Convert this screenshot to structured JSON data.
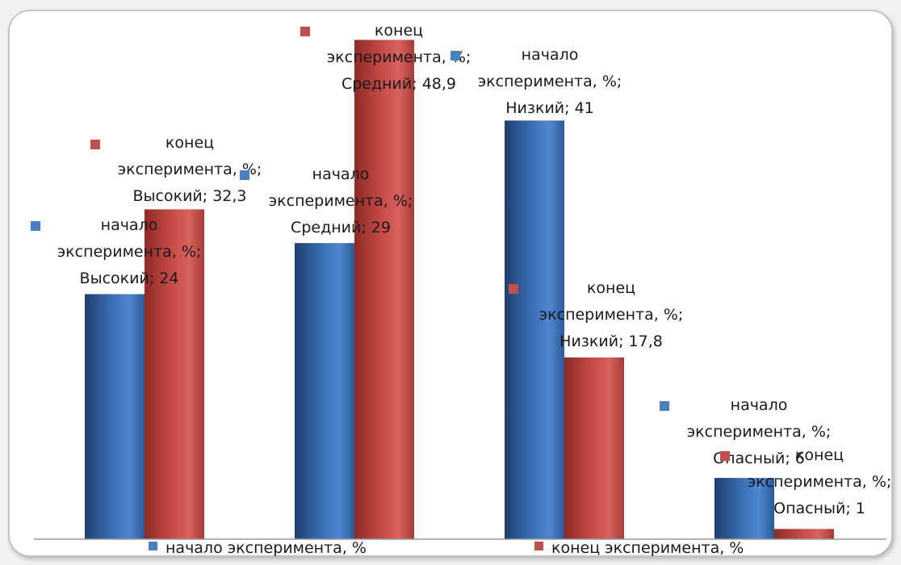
{
  "chart_data": {
    "type": "bar",
    "categories": [
      "Высокий",
      "Средний",
      "Низкий",
      "Опасный"
    ],
    "series": [
      {
        "name": "начало эксперимента, %",
        "values": [
          24,
          29,
          41,
          6
        ],
        "color": "#4a7fc1"
      },
      {
        "name": "конец эксперимента, %",
        "values": [
          32.3,
          48.9,
          17.8,
          1
        ],
        "color": "#c0504d"
      }
    ],
    "data_labels": [
      [
        "начало",
        "эксперимента, %;",
        "Высокий; 24"
      ],
      [
        "конец",
        "эксперимента, %;",
        "Высокий; 32,3"
      ],
      [
        "начало",
        "эксперимента, %;",
        "Средний; 29"
      ],
      [
        "конец",
        "эксперимента, %;",
        "Средний; 48,9"
      ],
      [
        "начало",
        "эксперимента, %;",
        "Низкий; 41"
      ],
      [
        "конец",
        "эксперимента, %;",
        "Низкий; 17,8"
      ],
      [
        "начало",
        "эксперимента, %;",
        "Опасный; 6"
      ],
      [
        "конец",
        "эксперимента, %;",
        "Опасный; 1"
      ]
    ],
    "legend": {
      "position": "bottom",
      "entries": [
        "начало эксперимента, %",
        "конец эксперимента, %"
      ]
    },
    "ylim": [
      0,
      50
    ],
    "grid": false
  }
}
